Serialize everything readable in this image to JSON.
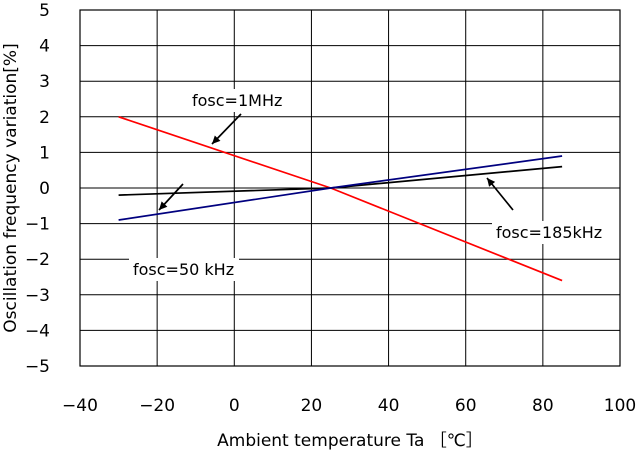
{
  "chart_data": {
    "type": "line",
    "xlabel": "Ambient temperature Ta ［℃］",
    "ylabel": "Oscillation frequency  variation[%]",
    "xlim": [
      -40,
      100
    ],
    "ylim": [
      -5,
      5
    ],
    "x_ticks": [
      "−40",
      "−20",
      "0",
      "20",
      "40",
      "60",
      "80",
      "100"
    ],
    "y_ticks": [
      "5",
      "4",
      "3",
      "2",
      "1",
      "0",
      "−1",
      "−2",
      "−3",
      "−4",
      "−5"
    ],
    "grid": true,
    "series": [
      {
        "name": "fosc=1MHz",
        "color": "#ff0000",
        "x": [
          -30,
          25,
          85
        ],
        "y": [
          2.0,
          0.0,
          -2.6
        ]
      },
      {
        "name": "fosc=185kHz",
        "color": "#000000",
        "x": [
          -30,
          25,
          85
        ],
        "y": [
          -0.2,
          0.0,
          0.6
        ]
      },
      {
        "name": "fosc=50 kHz",
        "color": "#00007f",
        "x": [
          -30,
          25,
          85
        ],
        "y": [
          -0.9,
          0.0,
          0.9
        ]
      }
    ],
    "annotations": [
      {
        "label": "fosc=1MHz"
      },
      {
        "label": "fosc=185kHz"
      },
      {
        "label": "fosc=50 kHz"
      }
    ]
  }
}
